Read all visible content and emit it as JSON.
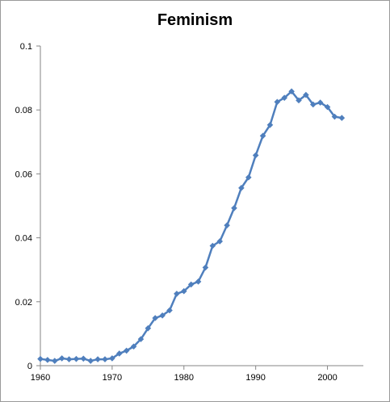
{
  "chart_data": {
    "type": "line",
    "title": "Feminism",
    "xlabel": "",
    "ylabel": "",
    "xlim": [
      1960,
      2005
    ],
    "ylim": [
      0,
      0.1
    ],
    "xticks": [
      1960,
      1970,
      1980,
      1990,
      2000
    ],
    "xtick_labels": [
      "1960",
      "1970",
      "1980",
      "1990",
      "2000"
    ],
    "yticks": [
      0,
      0.02,
      0.04,
      0.06,
      0.08,
      0.1
    ],
    "ytick_labels": [
      "0",
      "0.02",
      "0.04",
      "0.06",
      "0.08",
      "0.1"
    ],
    "grid": false,
    "legend": "none",
    "line_color": "#4f7fbd",
    "marker": "diamond",
    "series": [
      {
        "x": [
          1960,
          1961,
          1962,
          1963,
          1964,
          1965,
          1966,
          1967,
          1968,
          1969,
          1970,
          1971,
          1972,
          1973,
          1974,
          1975,
          1976,
          1977,
          1978,
          1979,
          1980,
          1981,
          1982,
          1983,
          1984,
          1985,
          1986,
          1987,
          1988,
          1989,
          1990,
          1991,
          1992,
          1993,
          1994,
          1995,
          1996,
          1997,
          1998,
          1999,
          2000,
          2001,
          2002
        ],
        "values": [
          0.0021,
          0.0018,
          0.0015,
          0.0023,
          0.002,
          0.0021,
          0.0022,
          0.0015,
          0.002,
          0.002,
          0.0023,
          0.0038,
          0.0047,
          0.006,
          0.0083,
          0.0117,
          0.0149,
          0.0157,
          0.0173,
          0.0225,
          0.0233,
          0.0254,
          0.0263,
          0.0307,
          0.0375,
          0.0389,
          0.0439,
          0.0493,
          0.0556,
          0.0589,
          0.0658,
          0.0719,
          0.0753,
          0.0825,
          0.0838,
          0.0858,
          0.083,
          0.0847,
          0.0817,
          0.0823,
          0.0809,
          0.0779,
          0.0775
        ]
      }
    ]
  }
}
